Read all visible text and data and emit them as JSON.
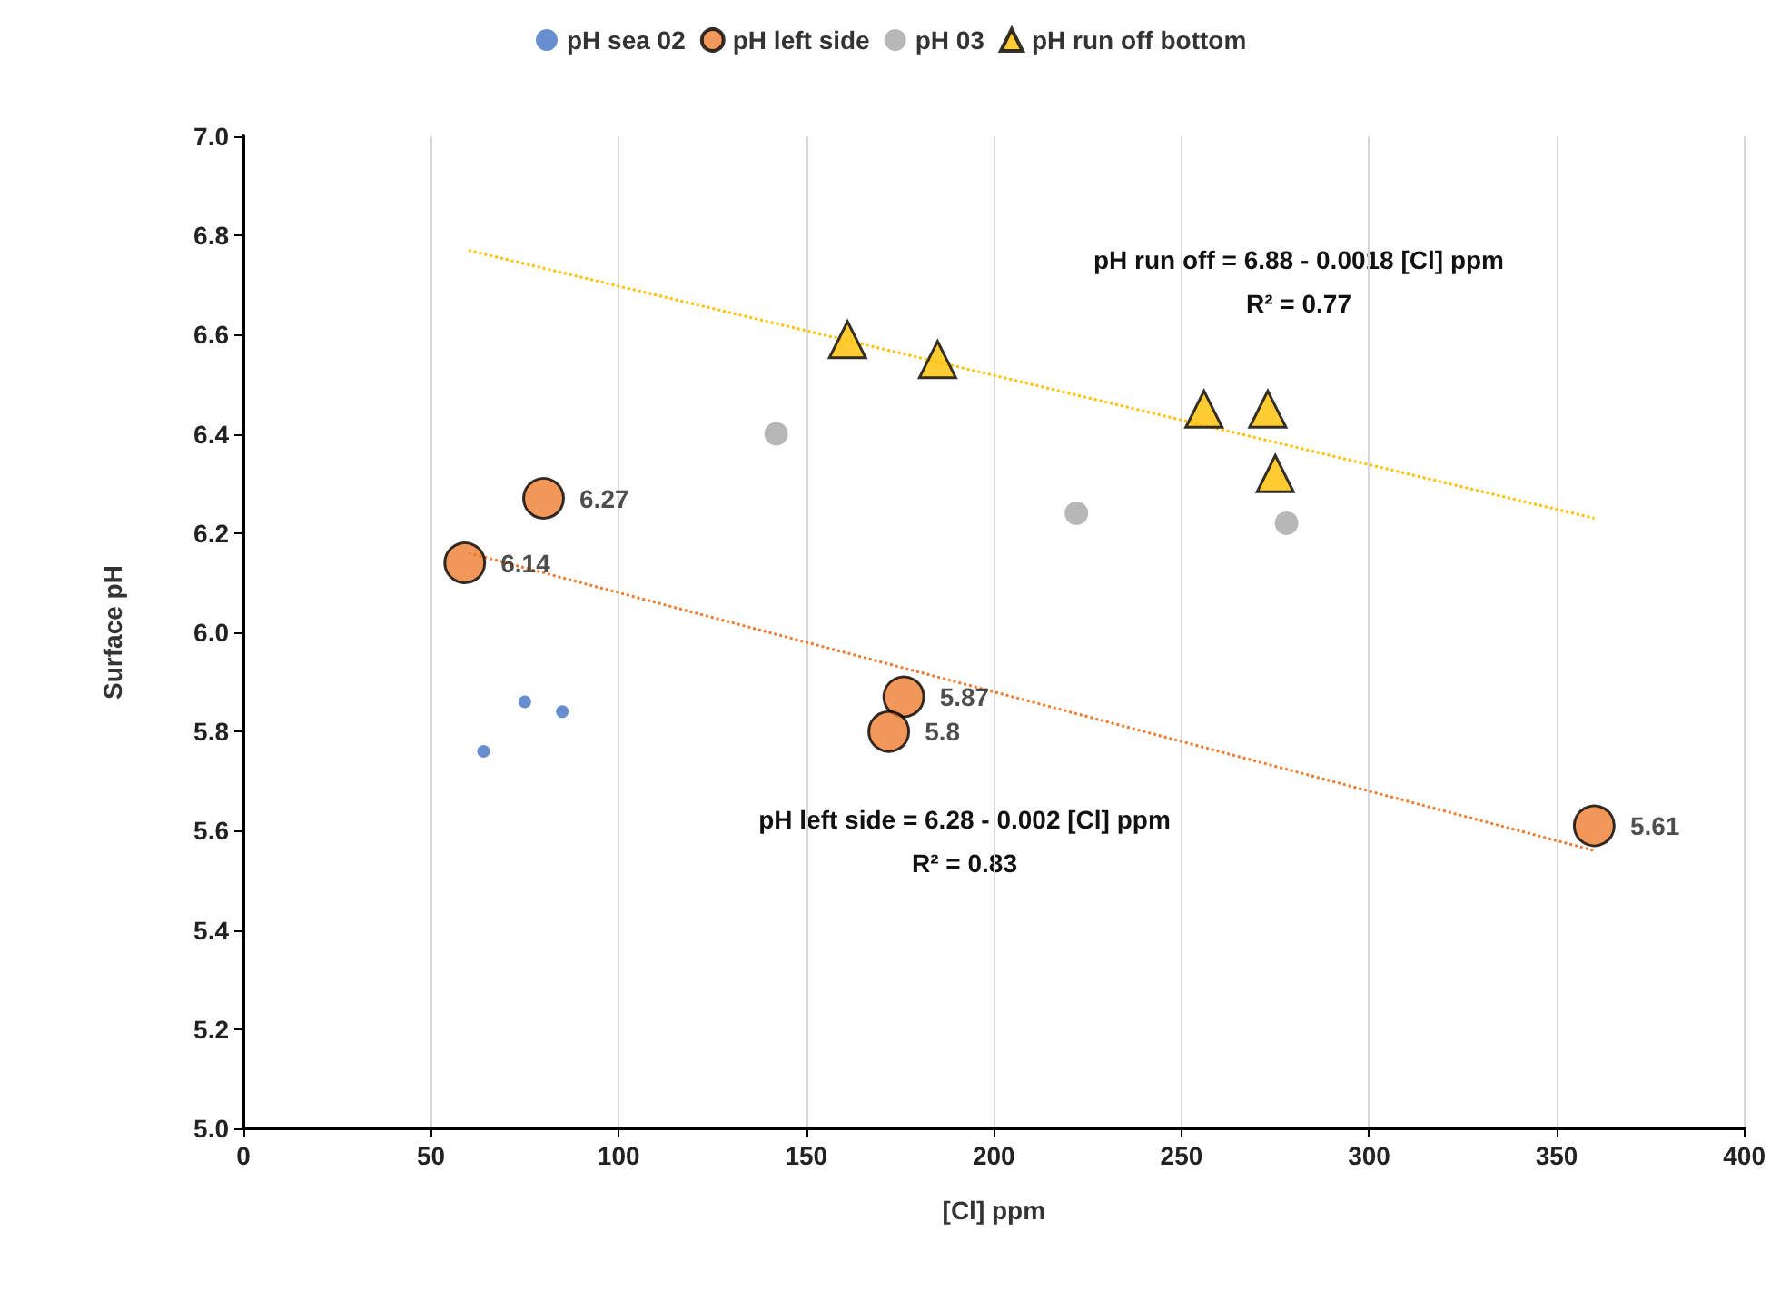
{
  "chart_data": {
    "type": "scatter",
    "xlabel": "[Cl] ppm",
    "ylabel": "Surface pH",
    "xlim": [
      0,
      400
    ],
    "xticks": [
      0,
      50,
      100,
      150,
      200,
      250,
      300,
      350,
      400
    ],
    "ylim": [
      5.0,
      7.0
    ],
    "yticks": [
      {
        "value": 5.0,
        "label": "5.0"
      },
      {
        "value": 5.2,
        "label": "5.2"
      },
      {
        "value": 5.4,
        "label": "5.4"
      },
      {
        "value": 5.6,
        "label": "5.6"
      },
      {
        "value": 5.8,
        "label": "5.8"
      },
      {
        "value": 6.0,
        "label": "6.0"
      },
      {
        "value": 6.2,
        "label": "6.2"
      },
      {
        "value": 6.4,
        "label": "6.4"
      },
      {
        "value": 6.6,
        "label": "6.6"
      },
      {
        "value": 6.8,
        "label": "6.8"
      },
      {
        "value": 7.0,
        "label": "7.0"
      }
    ],
    "grid": "x",
    "legend": "top",
    "series": [
      {
        "name": "pH sea 02",
        "color": "#4472c4",
        "marker": "circle",
        "x": [
          64,
          75,
          85
        ],
        "values": [
          5.76,
          5.86,
          5.84
        ]
      },
      {
        "name": "pH left side",
        "color": "#ed7d31",
        "marker": "circle",
        "x": [
          59,
          80,
          176,
          172,
          360
        ],
        "values": [
          6.14,
          6.27,
          5.87,
          5.8,
          5.61
        ],
        "value_labels": [
          "6.14",
          "6.27",
          "5.87",
          "5.8",
          "5.61"
        ]
      },
      {
        "name": "pH 03",
        "color": "#a5a5a5",
        "marker": "circle",
        "x": [
          142,
          222,
          278
        ],
        "values": [
          6.4,
          6.24,
          6.22
        ]
      },
      {
        "name": "pH run off bottom",
        "color": "#ffc000",
        "marker": "triangle",
        "x": [
          161,
          185,
          256,
          273,
          275
        ],
        "values": [
          6.59,
          6.55,
          6.45,
          6.45,
          6.32
        ]
      },
      {
        "type": "line",
        "color": "#ffc000",
        "marker": "none",
        "line_style": "dotted",
        "x": [
          60,
          360
        ],
        "values": [
          6.77,
          6.23
        ]
      },
      {
        "type": "line",
        "color": "#ed7d31",
        "marker": "none",
        "line_style": "dotted",
        "x": [
          60,
          360
        ],
        "values": [
          6.16,
          5.56
        ]
      }
    ],
    "annotations": [
      "pH run off = 6.88 - 0.0018 [Cl] ppm",
      "R² = 0.77",
      "pH left side = 6.28 - 0.002 [Cl] ppm",
      "R² = 0.83"
    ]
  }
}
